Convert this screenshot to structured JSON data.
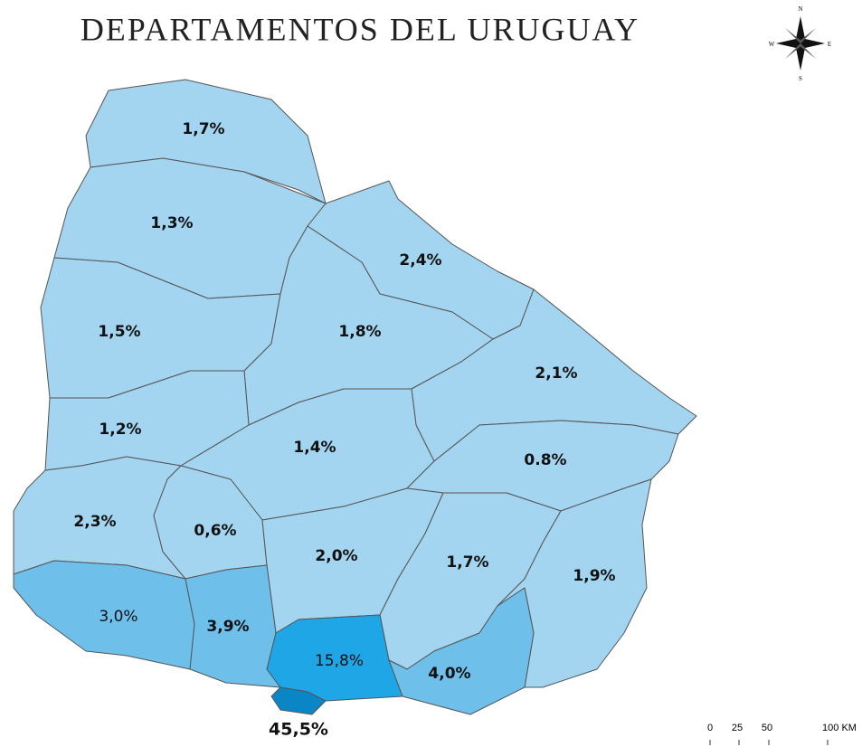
{
  "title": "DEPARTAMENTOS DEL URUGUAY",
  "compass": {
    "north": "N",
    "south": "S",
    "east": "E",
    "west": "W"
  },
  "scale": [
    "0",
    "25",
    "50",
    "100 KM"
  ],
  "regions": [
    {
      "label": "1,7%",
      "color": "#a3d4f0"
    },
    {
      "label": "1,3%",
      "color": "#a3d4f0"
    },
    {
      "label": "2,4%",
      "color": "#a3d4f0"
    },
    {
      "label": "1,5%",
      "color": "#a3d4f0"
    },
    {
      "label": "1,8%",
      "color": "#a3d4f0"
    },
    {
      "label": "2,1%",
      "color": "#a3d4f0"
    },
    {
      "label": "1,2%",
      "color": "#a3d4f0"
    },
    {
      "label": "1,4%",
      "color": "#a3d4f0"
    },
    {
      "label": "0.8%",
      "color": "#a3d4f0"
    },
    {
      "label": "2,3%",
      "color": "#a3d4f0"
    },
    {
      "label": "0,6%",
      "color": "#a3d4f0"
    },
    {
      "label": "2,0%",
      "color": "#a3d4f0"
    },
    {
      "label": "1,7%",
      "color": "#a3d4f0"
    },
    {
      "label": "1,9%",
      "color": "#a3d4f0"
    },
    {
      "label": "3,0%",
      "color": "#6ec0ea"
    },
    {
      "label": "3,9%",
      "color": "#6ec0ea"
    },
    {
      "label": "15,8%",
      "color": "#1fa6e6"
    },
    {
      "label": "4,0%",
      "color": "#6ec0ea"
    },
    {
      "label": "45,5%",
      "color": "#0a86c6"
    }
  ]
}
